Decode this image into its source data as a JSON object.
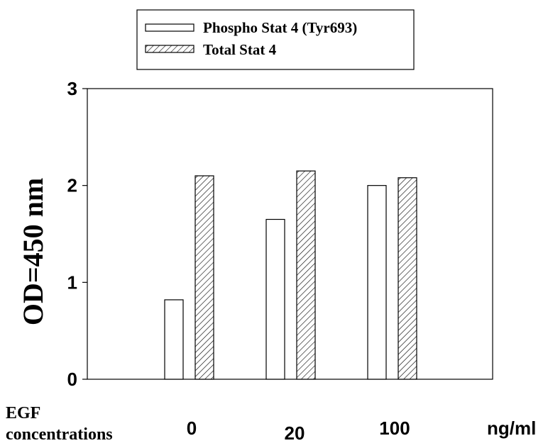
{
  "chart_data": {
    "type": "bar",
    "categories": [
      "0",
      "20",
      "100"
    ],
    "series": [
      {
        "name": "Phospho Stat 4 (Tyr693)",
        "values": [
          0.82,
          1.65,
          2.0
        ],
        "fill": "#ffffff",
        "pattern": "none"
      },
      {
        "name": "Total Stat 4",
        "values": [
          2.1,
          2.15,
          2.08
        ],
        "fill": "#ffffff",
        "pattern": "diagonal-hatch"
      }
    ],
    "ylabel": "OD=450 nm",
    "xlabel_left": "EGF concentrations",
    "xlabel_left_lines": [
      "EGF",
      "concentrations"
    ],
    "x_unit": "ng/ml",
    "ylim": [
      0,
      3
    ],
    "yticks": [
      "0",
      "1",
      "2",
      "3"
    ],
    "legend_position": "top-center",
    "grid": false,
    "colors": {
      "stroke": "#000000",
      "background": "#ffffff"
    }
  }
}
